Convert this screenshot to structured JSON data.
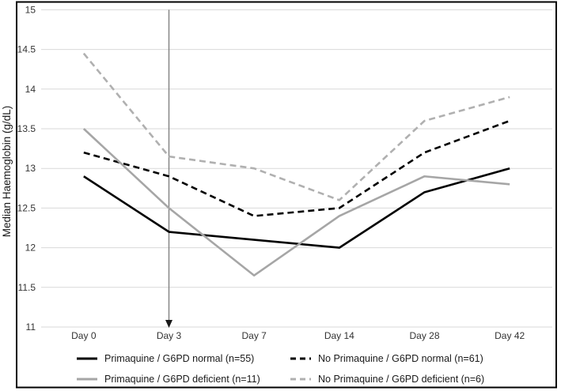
{
  "figure": {
    "border_color": "#000000",
    "background": "#ffffff"
  },
  "colors": {
    "gridline": "#d9d9d9",
    "tick_label": "#333333",
    "axis_title": "#1a1a1a",
    "series_black": "#000000",
    "series_gray": "#a6a6a6",
    "annotation_line": "#808080",
    "annotation_arrowhead": "#1a1a1a"
  },
  "chart_data": {
    "type": "line",
    "title": "",
    "xlabel": "",
    "ylabel": "Median Haemoglobin (g/dL)",
    "categories": [
      "Day 0",
      "Day 3",
      "Day 7",
      "Day 14",
      "Day 28",
      "Day 42"
    ],
    "ylim": [
      11,
      15
    ],
    "yticks": [
      11,
      11.5,
      12,
      12.5,
      13,
      13.5,
      14,
      14.5,
      15
    ],
    "grid": "horizontal",
    "legend_position": "bottom",
    "series": [
      {
        "name": "Primaquine / G6PD normal (n=55)",
        "color": "#000000",
        "dash": "solid",
        "values": [
          12.9,
          12.2,
          12.1,
          12.0,
          12.7,
          13.0
        ]
      },
      {
        "name": "No Primaquine / G6PD normal (n=61)",
        "color": "#000000",
        "dash": "dashed",
        "values": [
          13.2,
          12.9,
          12.4,
          12.5,
          13.2,
          13.6
        ]
      },
      {
        "name": "Primaquine / G6PD deficient (n=11)",
        "color": "#a6a6a6",
        "dash": "solid",
        "values": [
          13.5,
          12.5,
          11.65,
          12.4,
          12.9,
          12.8
        ]
      },
      {
        "name": "No Primaquine / G6PD deficient (n=6)",
        "color": "#b0b0b0",
        "dash": "dashed",
        "values": [
          14.45,
          13.15,
          13.0,
          12.6,
          13.6,
          13.9
        ]
      }
    ],
    "annotation": {
      "type": "vertical-arrow-down",
      "category": "Day 3",
      "from_value": 15,
      "to_value": 11
    }
  }
}
